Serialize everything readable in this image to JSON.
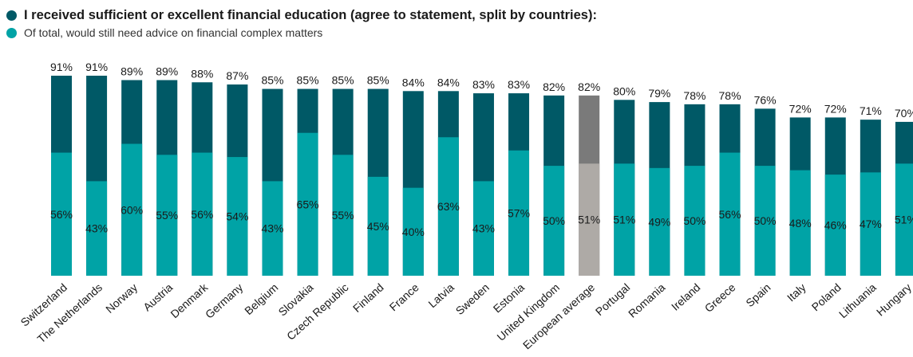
{
  "chart_data": {
    "type": "bar",
    "legend": [
      {
        "label": "I received sufficient or excellent financial education (agree to statement, split by countries):",
        "color": "#005966"
      },
      {
        "label": "Of total, would still need advice on financial complex matters",
        "color": "#00a3a6"
      }
    ],
    "highlight_category": "European average",
    "highlight_colors": {
      "total": "#7a7a7a",
      "advice": "#aeaaa6"
    },
    "categories": [
      "Switzerland",
      "The Netherlands",
      "Norway",
      "Austria",
      "Denmark",
      "Germany",
      "Belgium",
      "Slovakia",
      "Czech Republic",
      "Finland",
      "France",
      "Latvia",
      "Sweden",
      "Estonia",
      "United Kingdom",
      "European average",
      "Portugal",
      "Romania",
      "Ireland",
      "Greece",
      "Spain",
      "Italy",
      "Poland",
      "Lithuania",
      "Hungary"
    ],
    "series": [
      {
        "name": "I received sufficient or excellent financial education (agree to statement, split by countries):",
        "values": [
          91,
          91,
          89,
          89,
          88,
          87,
          85,
          85,
          85,
          85,
          84,
          84,
          83,
          83,
          82,
          82,
          80,
          79,
          78,
          78,
          76,
          72,
          72,
          71,
          70
        ],
        "labels": [
          "91%",
          "91%",
          "89%",
          "89%",
          "88%",
          "87%",
          "85%",
          "85%",
          "85%",
          "85%",
          "84%",
          "84%",
          "83%",
          "83%",
          "82%",
          "82%",
          "80%",
          "79%",
          "78%",
          "78%",
          "76%",
          "72%",
          "72%",
          "71%",
          "70%"
        ]
      },
      {
        "name": "Of total, would still need advice on financial complex matters",
        "values": [
          56,
          43,
          60,
          55,
          56,
          54,
          43,
          65,
          55,
          45,
          40,
          63,
          43,
          57,
          50,
          51,
          51,
          49,
          50,
          56,
          50,
          48,
          46,
          47,
          51
        ],
        "labels": [
          "56%",
          "43%",
          "60%",
          "55%",
          "56%",
          "54%",
          "43%",
          "65%",
          "55%",
          "45%",
          "40%",
          "63%",
          "43%",
          "57%",
          "50%",
          "51%",
          "51%",
          "49%",
          "50%",
          "56%",
          "50%",
          "48%",
          "46%",
          "47%",
          "51%"
        ]
      }
    ],
    "ylim": [
      0,
      91
    ],
    "grid": false
  }
}
